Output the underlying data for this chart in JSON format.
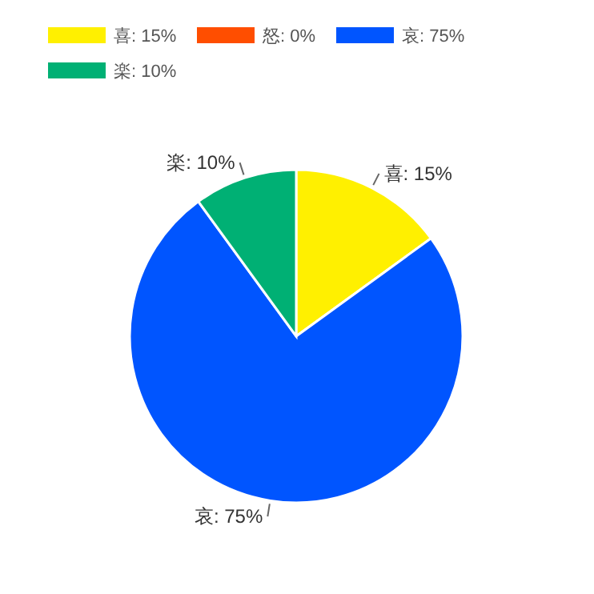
{
  "chart_data": {
    "type": "pie",
    "categories": [
      "喜: 15%",
      "怒: 0%",
      "哀: 75%",
      "楽: 10%"
    ],
    "values": [
      15,
      0,
      75,
      10
    ],
    "colors": [
      "#fff000",
      "#ff4e00",
      "#0055ff",
      "#00b074"
    ],
    "value_labels": [
      "喜: 15%",
      null,
      "哀: 75%",
      "楽: 10%"
    ],
    "legend": "top left"
  }
}
